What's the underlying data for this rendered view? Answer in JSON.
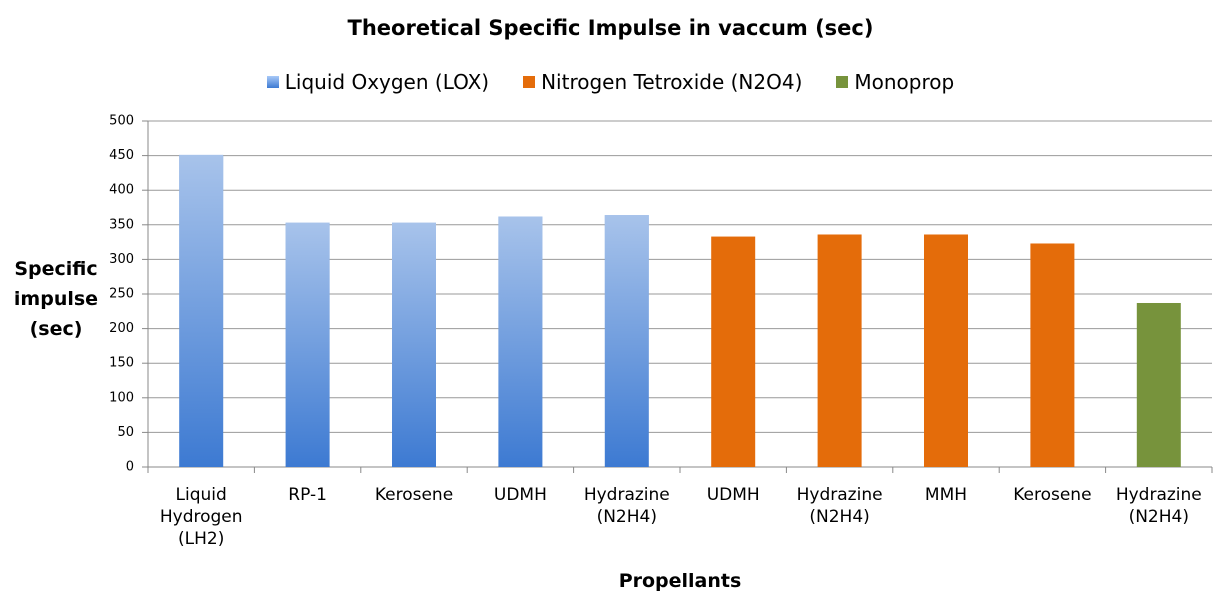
{
  "chart_data": {
    "type": "bar",
    "title": "Theoretical Specific Impulse in vaccum (sec)",
    "x_label": "Propellants",
    "y_label": "Specific impulse (sec)",
    "categories": [
      "Liquid Hydrogen (LH2)",
      "RP-1",
      "Kerosene",
      "UDMH",
      "Hydrazine (N2H4)",
      "UDMH",
      "Hydrazine (N2H4)",
      "MMH",
      "Kerosene",
      "Hydrazine (N2H4)"
    ],
    "series": [
      {
        "name": "Liquid Oxygen (LOX)",
        "color": "#3d7ad2",
        "gradient": true,
        "values": [
          451,
          353,
          353,
          362,
          364,
          null,
          null,
          null,
          null,
          null
        ]
      },
      {
        "name": "Nitrogen Tetroxide (N2O4)",
        "color": "#e46c0a",
        "values": [
          null,
          null,
          null,
          null,
          null,
          333,
          336,
          336,
          323,
          null
        ]
      },
      {
        "name": "Monoprop",
        "color": "#77933c",
        "values": [
          null,
          null,
          null,
          null,
          null,
          null,
          null,
          null,
          null,
          237
        ]
      }
    ],
    "ylim": [
      0,
      500
    ],
    "yticks": [
      0,
      50,
      100,
      150,
      200,
      250,
      300,
      350,
      400,
      450,
      500
    ],
    "grid": true,
    "legend": "top"
  }
}
